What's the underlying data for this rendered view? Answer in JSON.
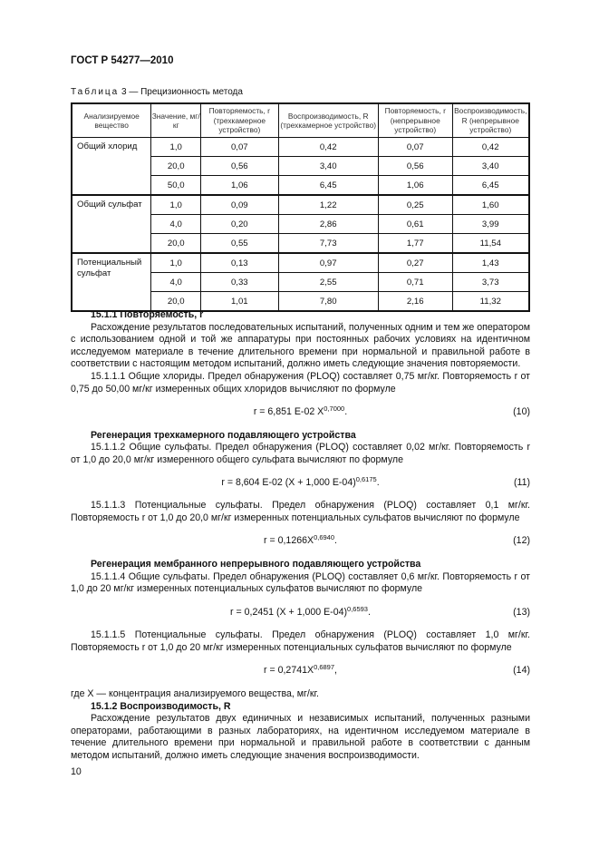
{
  "header": "ГОСТ Р 54277—2010",
  "caption": {
    "label": "Таблица",
    "rest": " 3 — Прецизионность метода"
  },
  "table": {
    "headers": [
      "Анализируемое вещество",
      "Значение, мг/кг",
      "Повторяемость, r (трехкамерное устройство)",
      "Воспроизводимость, R (трехкамерное устройство)",
      "Повторяемость, r (непрерывное устройство)",
      "Воспроизводимость, R (непрерывное устройство)"
    ],
    "groups": [
      {
        "substance": "Общий хлорид",
        "rows": [
          [
            "1,0",
            "0,07",
            "0,42",
            "0,07",
            "0,42"
          ],
          [
            "20,0",
            "0,56",
            "3,40",
            "0,56",
            "3,40"
          ],
          [
            "50,0",
            "1,06",
            "6,45",
            "1,06",
            "6,45"
          ]
        ]
      },
      {
        "substance": "Общий сульфат",
        "rows": [
          [
            "1,0",
            "0,09",
            "1,22",
            "0,25",
            "1,60"
          ],
          [
            "4,0",
            "0,20",
            "2,86",
            "0,61",
            "3,99"
          ],
          [
            "20,0",
            "0,55",
            "7,73",
            "1,77",
            "11,54"
          ]
        ]
      },
      {
        "substance": "Потенциальный сульфат",
        "rows": [
          [
            "1,0",
            "0,13",
            "0,97",
            "0,27",
            "1,43"
          ],
          [
            "4,0",
            "0,33",
            "2,55",
            "0,71",
            "3,73"
          ],
          [
            "20,0",
            "1,01",
            "7,80",
            "2,16",
            "11,32"
          ]
        ]
      }
    ]
  },
  "s1511": {
    "title": "15.1.1 Повторяемость, r",
    "text": "Расхождение результатов последовательных испытаний, полученных одним и тем же оператором с использованием одной и той же аппаратуры при постоянных рабочих условиях на идентичном исследуемом материале в течение длительного времени при нормальной и правильной работе в соответствии с настоящим методом испытаний, должно иметь следующие значения повторяемости."
  },
  "p1": "15.1.1.1 Общие хлориды. Предел обнаружения (PLOQ) составляет 0,75 мг/кг. Повторяемость r от 0,75 до 50,00 мг/кг измеренных общих хлоридов вычисляют по формуле",
  "f10": {
    "body": "r = 6,851 E-02 X",
    "exp": "0,7000",
    "tail": ".",
    "num": "(10)"
  },
  "h1": "Регенерация трехкамерного подавляющего устройства",
  "p2": "15.1.1.2 Общие сульфаты. Предел обнаружения (PLOQ) составляет 0,02 мг/кг. Повторяемость r от 1,0 до 20,0 мг/кг измеренного общего сульфата вычисляют по формуле",
  "f11": {
    "body": "r = 8,604 E-02 (X + 1,000 E-04)",
    "exp": "0,6175",
    "tail": ".",
    "num": "(11)"
  },
  "p3": "15.1.1.3 Потенциальные сульфаты. Предел обнаружения (PLOQ) составляет 0,1 мг/кг. Повторяемость r от 1,0 до 20,0 мг/кг измеренных потенциальных сульфатов вычисляют по формуле",
  "f12": {
    "body": "r = 0,1266X",
    "exp": "0,6940",
    "tail": ".",
    "num": "(12)"
  },
  "h2": "Регенерация мембранного непрерывного подавляющего устройства",
  "p4": "15.1.1.4 Общие сульфаты. Предел обнаружения (PLOQ) составляет 0,6 мг/кг. Повторяемость r от 1,0 до 20 мг/кг измеренных потенциальных сульфатов вычисляют по формуле",
  "f13": {
    "body": "r = 0,2451 (X + 1,000 E-04)",
    "exp": "0,6593",
    "tail": ".",
    "num": "(13)"
  },
  "p5": "15.1.1.5 Потенциальные сульфаты. Предел обнаружения (PLOQ) составляет 1,0 мг/кг. Повторяемость r от 1,0 до 20 мг/кг измеренных потенциальных сульфатов вычисляют по формуле",
  "f14": {
    "body": "r = 0,2741X",
    "exp": "0,6897",
    "tail": ",",
    "num": "(14)"
  },
  "where": "где X — концентрация анализируемого вещества, мг/кг.",
  "s1512": {
    "title": "15.1.2 Воспроизводимость, R",
    "text": "Расхождение результатов двух единичных и независимых испытаний, полученных разными операторами, работающими в разных лабораториях, на идентичном исследуемом материале в течение длительного времени при нормальной и правильной работе в соответствии с данным методом испытаний, должно иметь следующие значения воспроизводимости."
  },
  "page_number": "10"
}
